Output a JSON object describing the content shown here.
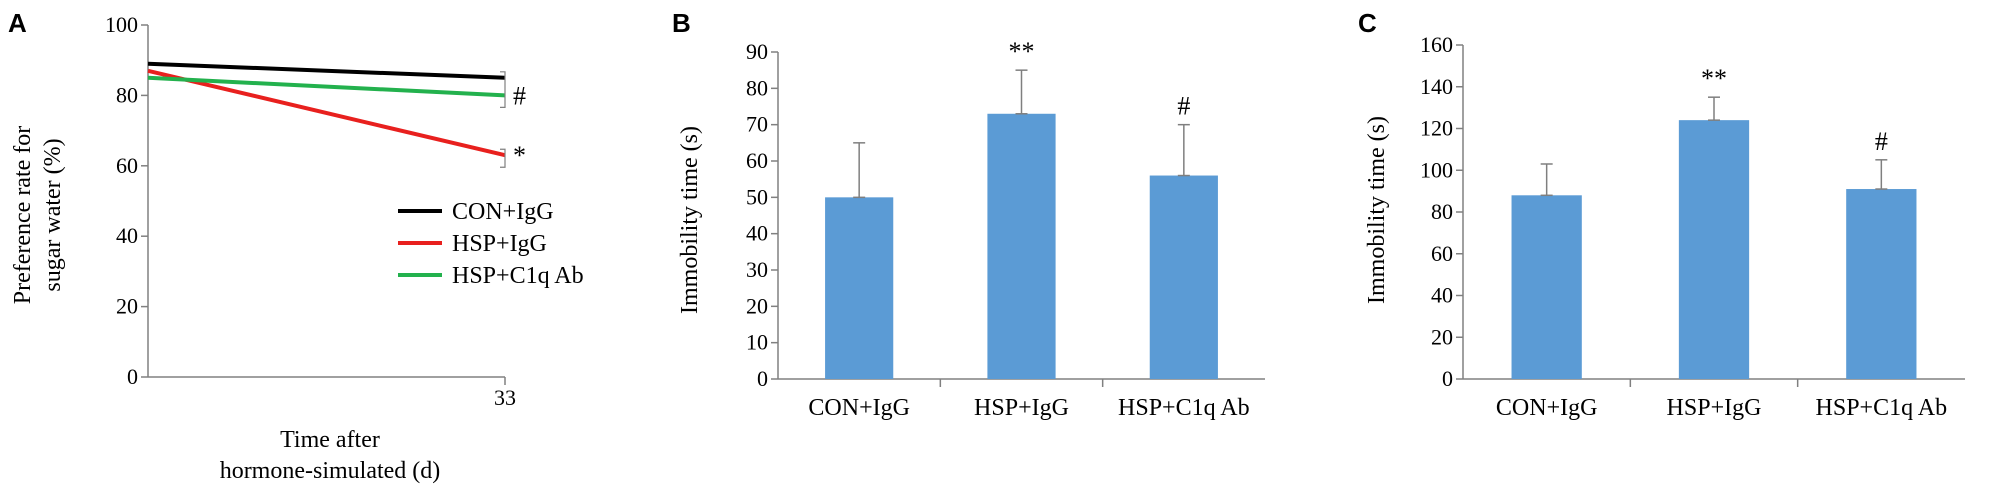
{
  "colors": {
    "bar": "#5B9BD5",
    "axis": "#808080",
    "CON+IgG": "#000000",
    "HSP+IgG": "#e8201e",
    "HSP+C1q Ab": "#23b14d"
  },
  "chart_data": [
    {
      "panel": "A",
      "type": "line",
      "xlabel": "Time after hormone-simulated (d)",
      "xlabel_lines": [
        "Time after",
        "hormone-simulated (d)"
      ],
      "ylabel": "Preference rate for sugar water (%)",
      "ylabel_lines": [
        "Preference rate for",
        "sugar water (%)"
      ],
      "ylim": [
        0,
        100
      ],
      "yticks": [
        "0",
        "20",
        "40",
        "60",
        "80",
        "100"
      ],
      "xtick_label": "33",
      "legend_position": "center-right",
      "series": [
        {
          "name": "CON+IgG",
          "values": [
            89,
            85
          ],
          "annotation": ""
        },
        {
          "name": "HSP+IgG",
          "values": [
            87,
            63
          ],
          "annotation": "*"
        },
        {
          "name": "HSP+C1q Ab",
          "values": [
            85,
            80
          ],
          "annotation": "#"
        }
      ]
    },
    {
      "panel": "B",
      "type": "bar",
      "ylabel": "Immobility time (s)",
      "ylim": [
        0,
        90
      ],
      "yticks": [
        "0",
        "10",
        "20",
        "30",
        "40",
        "50",
        "60",
        "70",
        "80",
        "90"
      ],
      "categories": [
        "CON+IgG",
        "HSP+IgG",
        "HSP+C1q Ab"
      ],
      "values": [
        50,
        73,
        56
      ],
      "errors": [
        15,
        12,
        14
      ],
      "annotations": [
        "",
        "**",
        "#"
      ]
    },
    {
      "panel": "C",
      "type": "bar",
      "ylabel": "Immobility time (s)",
      "ylim": [
        0,
        160
      ],
      "yticks": [
        "0",
        "20",
        "40",
        "60",
        "80",
        "100",
        "120",
        "140",
        "160"
      ],
      "categories": [
        "CON+IgG",
        "HSP+IgG",
        "HSP+C1q Ab"
      ],
      "values": [
        88,
        124,
        91
      ],
      "errors": [
        15,
        11,
        14
      ],
      "annotations": [
        "",
        "**",
        "#"
      ]
    }
  ]
}
